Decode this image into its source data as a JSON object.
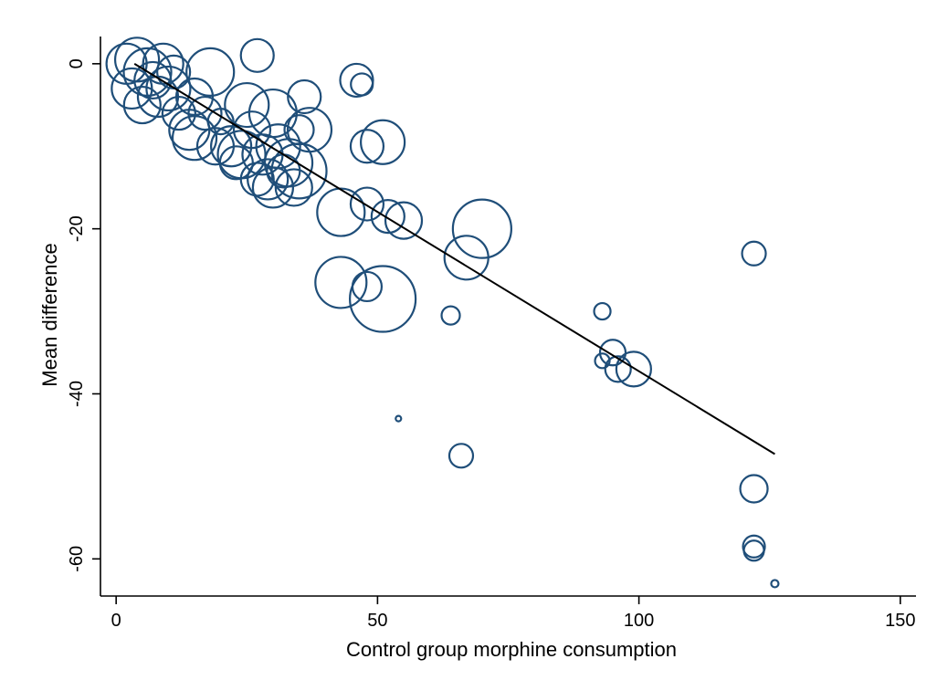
{
  "chart_data": {
    "type": "scatter",
    "subtype": "bubble meta-regression",
    "xlabel": "Control group morphine consumption",
    "ylabel": "Mean difference",
    "xlim": [
      -3,
      153
    ],
    "ylim": [
      -64.5,
      3.3
    ],
    "xticks": [
      0,
      50,
      100,
      150
    ],
    "yticks": [
      0,
      -20,
      -40,
      -60
    ],
    "grid": false,
    "legend": "none",
    "marker_color": "#1f4e79",
    "fit_color": "#000000",
    "fit_line": {
      "x": [
        3.5,
        126
      ],
      "y": [
        0,
        -47.3
      ]
    },
    "points": [
      {
        "x": 27,
        "y": 1,
        "r": 18
      },
      {
        "x": 2,
        "y": 0,
        "r": 22
      },
      {
        "x": 4,
        "y": 0.5,
        "r": 24
      },
      {
        "x": 6,
        "y": -1,
        "r": 26
      },
      {
        "x": 3,
        "y": -3,
        "r": 22
      },
      {
        "x": 7,
        "y": -2,
        "r": 20
      },
      {
        "x": 9,
        "y": 0,
        "r": 22
      },
      {
        "x": 11,
        "y": -1,
        "r": 18
      },
      {
        "x": 5,
        "y": -5,
        "r": 20
      },
      {
        "x": 8,
        "y": -4,
        "r": 22
      },
      {
        "x": 10,
        "y": -3,
        "r": 24
      },
      {
        "x": 12,
        "y": -6,
        "r": 18
      },
      {
        "x": 15,
        "y": -4,
        "r": 20
      },
      {
        "x": 18,
        "y": -1,
        "r": 26
      },
      {
        "x": 14,
        "y": -8,
        "r": 22
      },
      {
        "x": 17,
        "y": -6,
        "r": 18
      },
      {
        "x": 20,
        "y": -7,
        "r": 14
      },
      {
        "x": 22,
        "y": -10,
        "r": 22
      },
      {
        "x": 25,
        "y": -5,
        "r": 24
      },
      {
        "x": 26,
        "y": -8,
        "r": 20
      },
      {
        "x": 23,
        "y": -12,
        "r": 18
      },
      {
        "x": 28,
        "y": -11,
        "r": 22
      },
      {
        "x": 30,
        "y": -6,
        "r": 26
      },
      {
        "x": 31,
        "y": -10,
        "r": 24
      },
      {
        "x": 29,
        "y": -14,
        "r": 22
      },
      {
        "x": 32,
        "y": -13,
        "r": 18
      },
      {
        "x": 34,
        "y": -15,
        "r": 20
      },
      {
        "x": 35,
        "y": -8,
        "r": 16
      },
      {
        "x": 36,
        "y": -4,
        "r": 18
      },
      {
        "x": 37,
        "y": -8,
        "r": 24
      },
      {
        "x": 35,
        "y": -13,
        "r": 30
      },
      {
        "x": 33,
        "y": -12,
        "r": 26
      },
      {
        "x": 30,
        "y": -15,
        "r": 22
      },
      {
        "x": 27,
        "y": -14,
        "r": 18
      },
      {
        "x": 15,
        "y": -9,
        "r": 24
      },
      {
        "x": 19,
        "y": -10,
        "r": 20
      },
      {
        "x": 24,
        "y": -11,
        "r": 26
      },
      {
        "x": 46,
        "y": -2,
        "r": 18
      },
      {
        "x": 47,
        "y": -2.5,
        "r": 12
      },
      {
        "x": 48,
        "y": -10,
        "r": 18
      },
      {
        "x": 51,
        "y": -9.5,
        "r": 24
      },
      {
        "x": 43,
        "y": -18,
        "r": 26
      },
      {
        "x": 48,
        "y": -17,
        "r": 18
      },
      {
        "x": 52,
        "y": -18.5,
        "r": 18
      },
      {
        "x": 55,
        "y": -19,
        "r": 20
      },
      {
        "x": 70,
        "y": -20,
        "r": 32
      },
      {
        "x": 67,
        "y": -23.5,
        "r": 24
      },
      {
        "x": 43,
        "y": -26.5,
        "r": 28
      },
      {
        "x": 48,
        "y": -27,
        "r": 16
      },
      {
        "x": 51,
        "y": -28.5,
        "r": 36
      },
      {
        "x": 64,
        "y": -30.5,
        "r": 10
      },
      {
        "x": 93,
        "y": -30,
        "r": 9
      },
      {
        "x": 95,
        "y": -35,
        "r": 14
      },
      {
        "x": 93,
        "y": -36,
        "r": 8
      },
      {
        "x": 96,
        "y": -37,
        "r": 14
      },
      {
        "x": 99,
        "y": -37,
        "r": 19
      },
      {
        "x": 122,
        "y": -23,
        "r": 13
      },
      {
        "x": 54,
        "y": -43,
        "r": 3
      },
      {
        "x": 66,
        "y": -47.5,
        "r": 13
      },
      {
        "x": 122,
        "y": -51.5,
        "r": 15
      },
      {
        "x": 122,
        "y": -58.5,
        "r": 12
      },
      {
        "x": 122,
        "y": -59,
        "r": 11
      },
      {
        "x": 126,
        "y": -63,
        "r": 4
      }
    ]
  }
}
